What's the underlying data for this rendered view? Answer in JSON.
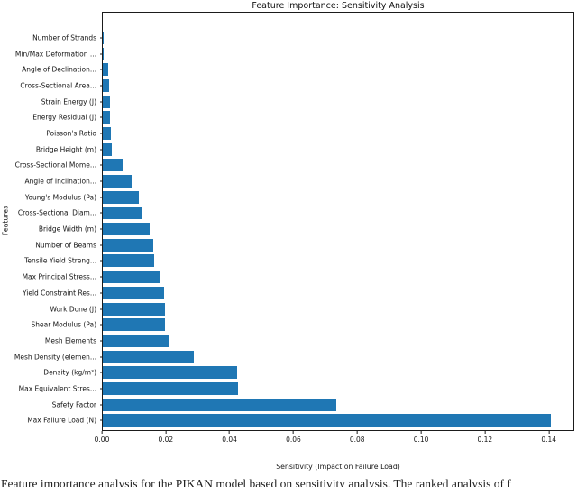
{
  "caption": "Feature importance analysis for the PIKAN model based on sensitivity analysis. The ranked analysis of f",
  "chart_data": {
    "type": "bar",
    "orientation": "horizontal",
    "title": "Feature Importance: Sensitivity Analysis",
    "xlabel": "Sensitivity (Impact on Failure Load)",
    "ylabel": "Features",
    "xlim": [
      0,
      0.148
    ],
    "x_ticks": [
      0.0,
      0.02,
      0.04,
      0.06,
      0.08,
      0.1,
      0.12,
      0.14
    ],
    "x_tick_labels": [
      "0.00",
      "0.02",
      "0.04",
      "0.06",
      "0.08",
      "0.10",
      "0.12",
      "0.14"
    ],
    "grid": false,
    "legend": "none",
    "bar_color": "#1f77b4",
    "categories": [
      "Number of Strands",
      "Min/Max Deformation ...",
      "Angle of Declination...",
      "Cross-Sectional Area...",
      "Strain Energy (J)",
      "Energy Residual (J)",
      "Poisson's Ratio",
      "Bridge Height (m)",
      "Cross-Sectional Mome...",
      "Angle of Inclination...",
      "Young's Modulus (Pa)",
      "Cross-Sectional Diam...",
      "Bridge Width (m)",
      "Number of Beams",
      "Tensile Yield Streng...",
      "Max Principal Stress...",
      "Yield Constraint Res...",
      "Work Done (J)",
      "Shear Modulus (Pa)",
      "Mesh Elements",
      "Mesh Density (elemen...",
      "Density (kg/m³)",
      "Max Equivalent Stres...",
      "Safety Factor",
      "Max Failure Load (N)"
    ],
    "values": [
      0.0001,
      0.0003,
      0.0016,
      0.0021,
      0.0022,
      0.0024,
      0.0026,
      0.0029,
      0.0062,
      0.0092,
      0.0114,
      0.0122,
      0.0148,
      0.016,
      0.0161,
      0.0178,
      0.0193,
      0.0195,
      0.0197,
      0.0207,
      0.0287,
      0.0423,
      0.0426,
      0.0735,
      0.141
    ]
  }
}
